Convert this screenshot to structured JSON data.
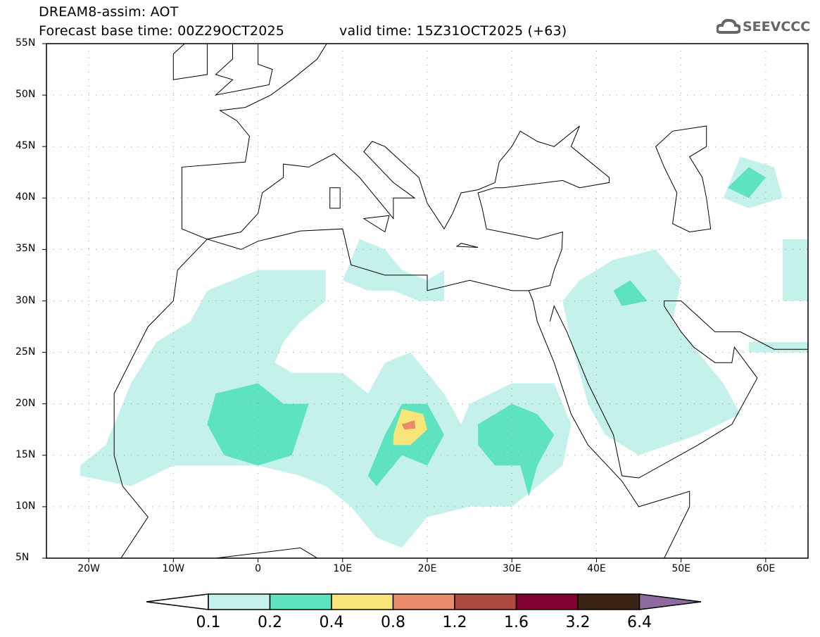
{
  "header": {
    "title": "DREAM8-assim: AOT",
    "base_time": "Forecast base time: 00Z29OCT2025",
    "valid_time": "valid time: 15Z31OCT2025 (+63)",
    "logo": "SEEVCCC"
  },
  "map": {
    "lon_range": [
      -25,
      65
    ],
    "lat_range": [
      5,
      55
    ],
    "lat_labels": [
      "5N",
      "10N",
      "15N",
      "20N",
      "25N",
      "30N",
      "35N",
      "40N",
      "45N",
      "50N",
      "55N"
    ],
    "lon_labels": [
      "20W",
      "10W",
      "0",
      "10E",
      "20E",
      "30E",
      "40E",
      "50E",
      "60E"
    ]
  },
  "colorbar": {
    "labels": [
      "0.1",
      "0.2",
      "0.4",
      "0.8",
      "1.2",
      "1.6",
      "3.2",
      "6.4"
    ],
    "colors": [
      "#c4f2ea",
      "#5de3bf",
      "#f7e57a",
      "#ea8a6a",
      "#ad4a40",
      "#820030",
      "#3a2414"
    ],
    "under_color": "#ffffff",
    "over_color": "#8f6aa0"
  }
}
